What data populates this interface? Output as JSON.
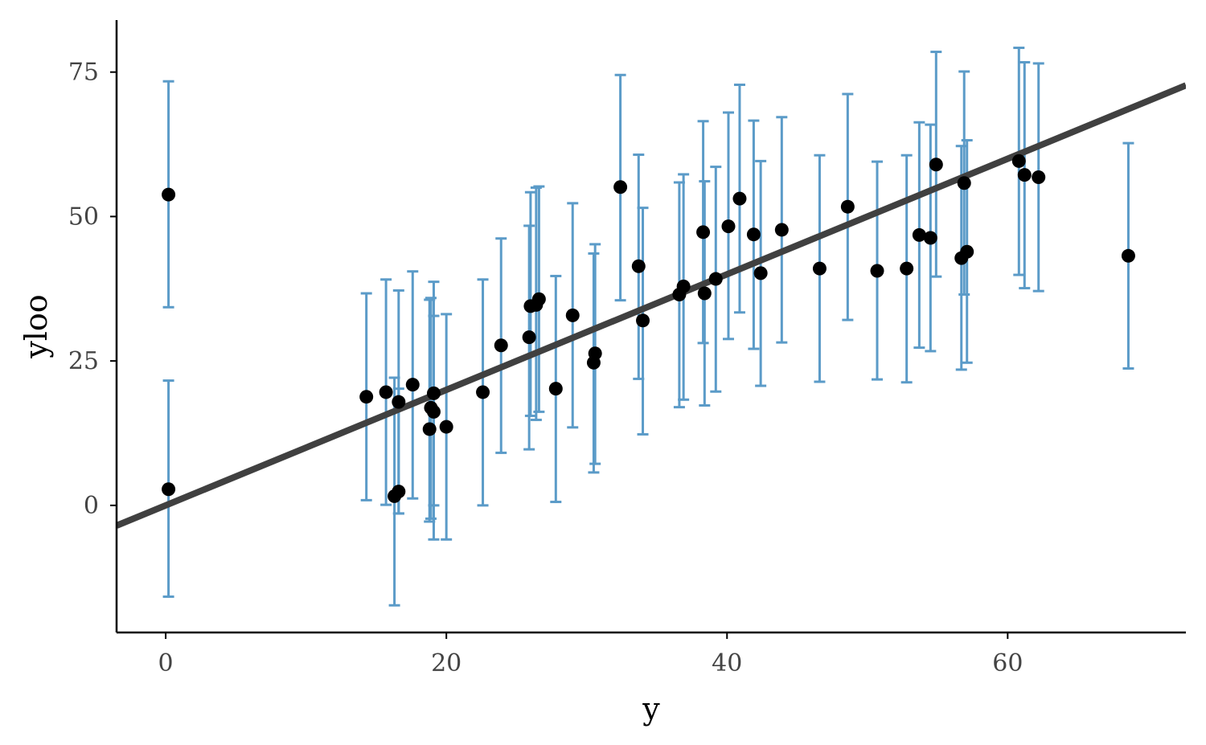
{
  "chart_data": {
    "type": "scatter",
    "title": "",
    "xlabel": "y",
    "ylabel": "yloo",
    "xlim": [
      -3.5,
      72.7
    ],
    "ylim": [
      -22,
      84
    ],
    "x_ticks": [
      0,
      20,
      40,
      60
    ],
    "x_tick_labels": [
      "0",
      "20",
      "40",
      "60"
    ],
    "y_ticks": [
      0,
      25,
      50,
      75
    ],
    "y_tick_labels": [
      "0",
      "25",
      "50",
      "75"
    ],
    "grid": false,
    "legend": "none",
    "colors": {
      "points": "#000000",
      "errorbars": "#5b9bc8",
      "fit_line": "#404040"
    },
    "fit_line": {
      "intercept": 0,
      "slope": 1
    },
    "points": [
      {
        "x": 0.2,
        "y": 53.8,
        "lo": 34.3,
        "hi": 73.4
      },
      {
        "x": 0.2,
        "y": 2.8,
        "lo": -15.8,
        "hi": 21.6
      },
      {
        "x": 14.3,
        "y": 18.8,
        "lo": 0.9,
        "hi": 36.7
      },
      {
        "x": 15.7,
        "y": 19.6,
        "lo": 0.1,
        "hi": 39.1
      },
      {
        "x": 16.3,
        "y": 1.6,
        "lo": -17.3,
        "hi": 22.1
      },
      {
        "x": 16.6,
        "y": 2.4,
        "lo": -1.4,
        "hi": 20.2
      },
      {
        "x": 16.6,
        "y": 17.9,
        "lo": -1.4,
        "hi": 37.2
      },
      {
        "x": 17.6,
        "y": 20.9,
        "lo": 1.2,
        "hi": 40.5
      },
      {
        "x": 18.8,
        "y": 13.2,
        "lo": -2.8,
        "hi": 35.6
      },
      {
        "x": 18.9,
        "y": 16.9,
        "lo": -2.3,
        "hi": 35.9
      },
      {
        "x": 19.1,
        "y": 16.2,
        "lo": -5.9,
        "hi": 32.8
      },
      {
        "x": 19.1,
        "y": 19.4,
        "lo": 0.0,
        "hi": 38.7
      },
      {
        "x": 20.0,
        "y": 13.6,
        "lo": -5.9,
        "hi": 33.1
      },
      {
        "x": 22.6,
        "y": 19.6,
        "lo": 0.0,
        "hi": 39.1
      },
      {
        "x": 23.9,
        "y": 27.7,
        "lo": 9.1,
        "hi": 46.2
      },
      {
        "x": 25.9,
        "y": 29.1,
        "lo": 9.7,
        "hi": 48.4
      },
      {
        "x": 26.0,
        "y": 34.5,
        "lo": 15.5,
        "hi": 54.2
      },
      {
        "x": 26.4,
        "y": 34.7,
        "lo": 14.8,
        "hi": 55.0
      },
      {
        "x": 26.6,
        "y": 35.7,
        "lo": 16.2,
        "hi": 55.2
      },
      {
        "x": 27.8,
        "y": 20.2,
        "lo": 0.6,
        "hi": 39.7
      },
      {
        "x": 29.0,
        "y": 32.9,
        "lo": 13.5,
        "hi": 52.3
      },
      {
        "x": 30.5,
        "y": 24.7,
        "lo": 5.7,
        "hi": 43.6
      },
      {
        "x": 30.6,
        "y": 26.3,
        "lo": 7.2,
        "hi": 45.2
      },
      {
        "x": 32.4,
        "y": 55.1,
        "lo": 35.5,
        "hi": 74.5
      },
      {
        "x": 33.7,
        "y": 41.4,
        "lo": 21.9,
        "hi": 60.7
      },
      {
        "x": 34.0,
        "y": 32.0,
        "lo": 12.3,
        "hi": 51.5
      },
      {
        "x": 36.6,
        "y": 36.5,
        "lo": 17.0,
        "hi": 55.9
      },
      {
        "x": 36.9,
        "y": 37.9,
        "lo": 18.3,
        "hi": 57.3
      },
      {
        "x": 38.3,
        "y": 47.3,
        "lo": 28.1,
        "hi": 66.5
      },
      {
        "x": 38.4,
        "y": 36.7,
        "lo": 17.3,
        "hi": 56.1
      },
      {
        "x": 39.2,
        "y": 39.2,
        "lo": 19.7,
        "hi": 58.6
      },
      {
        "x": 40.1,
        "y": 48.3,
        "lo": 28.8,
        "hi": 68.0
      },
      {
        "x": 40.9,
        "y": 53.1,
        "lo": 33.4,
        "hi": 72.8
      },
      {
        "x": 41.9,
        "y": 46.9,
        "lo": 27.1,
        "hi": 66.6
      },
      {
        "x": 42.4,
        "y": 40.2,
        "lo": 20.7,
        "hi": 59.6
      },
      {
        "x": 43.9,
        "y": 47.7,
        "lo": 28.2,
        "hi": 67.2
      },
      {
        "x": 46.6,
        "y": 41.0,
        "lo": 21.4,
        "hi": 60.6
      },
      {
        "x": 48.6,
        "y": 51.7,
        "lo": 32.1,
        "hi": 71.2
      },
      {
        "x": 50.7,
        "y": 40.6,
        "lo": 21.8,
        "hi": 59.5
      },
      {
        "x": 52.8,
        "y": 41.0,
        "lo": 21.3,
        "hi": 60.6
      },
      {
        "x": 53.7,
        "y": 46.8,
        "lo": 27.3,
        "hi": 66.3
      },
      {
        "x": 54.5,
        "y": 46.3,
        "lo": 26.7,
        "hi": 65.9
      },
      {
        "x": 54.9,
        "y": 59.0,
        "lo": 39.6,
        "hi": 78.5
      },
      {
        "x": 56.7,
        "y": 42.8,
        "lo": 23.5,
        "hi": 62.2
      },
      {
        "x": 56.9,
        "y": 55.8,
        "lo": 36.5,
        "hi": 75.1
      },
      {
        "x": 57.1,
        "y": 43.9,
        "lo": 24.7,
        "hi": 63.2
      },
      {
        "x": 60.8,
        "y": 59.6,
        "lo": 39.9,
        "hi": 79.2
      },
      {
        "x": 61.2,
        "y": 57.2,
        "lo": 37.6,
        "hi": 76.7
      },
      {
        "x": 62.2,
        "y": 56.8,
        "lo": 37.1,
        "hi": 76.5
      },
      {
        "x": 68.6,
        "y": 43.2,
        "lo": 23.7,
        "hi": 62.7
      }
    ]
  }
}
